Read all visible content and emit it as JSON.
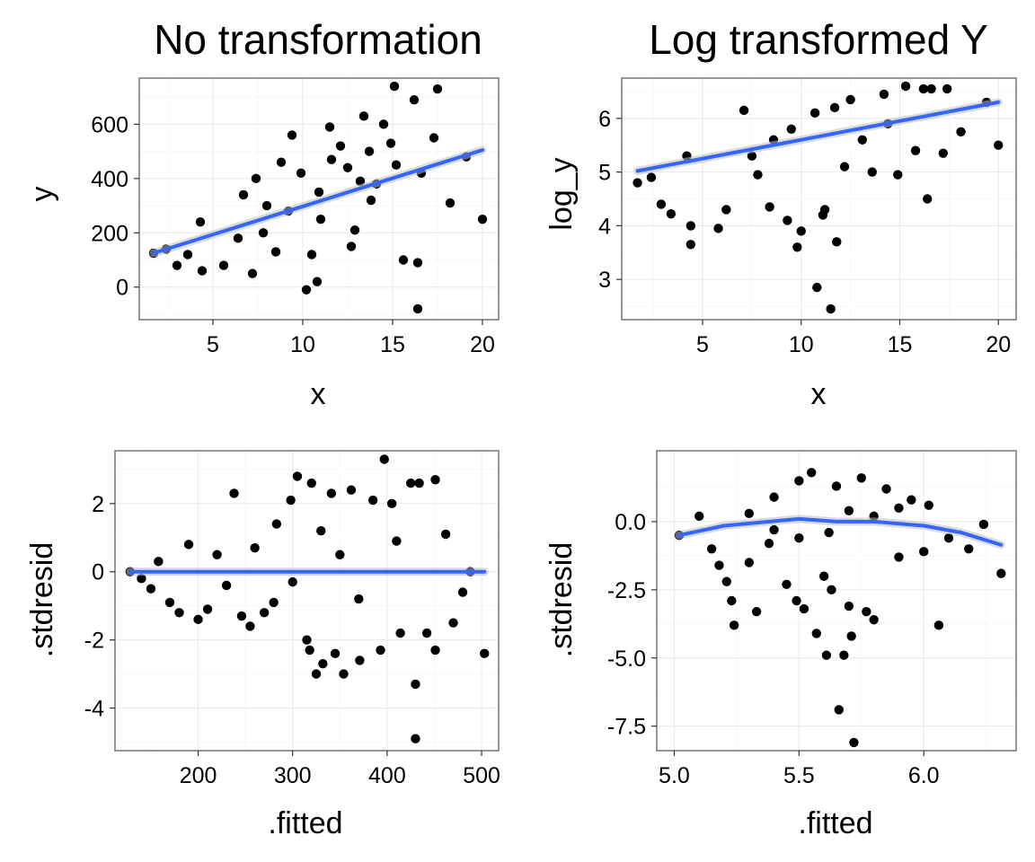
{
  "colors": {
    "points": "#000000",
    "smooth": "#3366ff",
    "ribbon": "#bdbdbd",
    "panel_border": "#7f7f7f",
    "grid": "#ebebeb"
  },
  "chart_data": [
    {
      "type": "scatter",
      "title": "No transformation",
      "xlabel": "x",
      "ylabel": "y",
      "xlim": [
        0.9,
        20.9
      ],
      "ylim": [
        -120,
        770
      ],
      "xticks": [
        5,
        10,
        15,
        20
      ],
      "xtick_labels": [
        "5",
        "10",
        "15",
        "20"
      ],
      "yticks": [
        0,
        200,
        400,
        600
      ],
      "ytick_labels": [
        "0",
        "200",
        "400",
        "600"
      ],
      "grid": true,
      "series": [],
      "points": [
        [
          1.7,
          125
        ],
        [
          2.4,
          140
        ],
        [
          3,
          80
        ],
        [
          3.6,
          120
        ],
        [
          4.4,
          60
        ],
        [
          4.3,
          240
        ],
        [
          5.6,
          80
        ],
        [
          6.7,
          340
        ],
        [
          7.2,
          50
        ],
        [
          7.8,
          200
        ],
        [
          8.5,
          130
        ],
        [
          8.8,
          460
        ],
        [
          9.4,
          560
        ],
        [
          10.2,
          -10
        ],
        [
          10.8,
          20
        ],
        [
          11.5,
          590
        ],
        [
          12.1,
          520
        ],
        [
          12.7,
          150
        ],
        [
          13.4,
          630
        ],
        [
          13.8,
          320
        ],
        [
          14.5,
          600
        ],
        [
          14.9,
          530
        ],
        [
          15.2,
          450
        ],
        [
          15.6,
          100
        ],
        [
          16.2,
          690
        ],
        [
          16.4,
          90
        ],
        [
          16.4,
          -80
        ],
        [
          16.6,
          420
        ],
        [
          17.3,
          550
        ],
        [
          17.5,
          730
        ],
        [
          18.2,
          310
        ],
        [
          19.1,
          480
        ],
        [
          20,
          250
        ],
        [
          12.5,
          440
        ],
        [
          10.9,
          350
        ],
        [
          9.2,
          280
        ],
        [
          8,
          300
        ],
        [
          11.6,
          470
        ],
        [
          13.2,
          390
        ],
        [
          14.1,
          380
        ],
        [
          6.4,
          180
        ],
        [
          15.1,
          740
        ],
        [
          12.9,
          210
        ],
        [
          10.5,
          120
        ],
        [
          7.4,
          400
        ],
        [
          9.9,
          420
        ],
        [
          11,
          250
        ],
        [
          13.7,
          500
        ]
      ],
      "smooth": {
        "x": [
          1.7,
          20
        ],
        "y": [
          125,
          505
        ]
      }
    },
    {
      "type": "scatter",
      "title": "Log transformed Y",
      "xlabel": "x",
      "ylabel": "log_y",
      "xlim": [
        0.9,
        20.9
      ],
      "ylim": [
        2.25,
        6.75
      ],
      "xticks": [
        5,
        10,
        15,
        20
      ],
      "xtick_labels": [
        "5",
        "10",
        "15",
        "20"
      ],
      "yticks": [
        3,
        4,
        5,
        6
      ],
      "ytick_labels": [
        "3",
        "4",
        "5",
        "6"
      ],
      "grid": true,
      "series": [],
      "points": [
        [
          1.7,
          4.8
        ],
        [
          2.4,
          4.9
        ],
        [
          2.9,
          4.4
        ],
        [
          3.4,
          4.22
        ],
        [
          4.4,
          3.65
        ],
        [
          4.4,
          4.0
        ],
        [
          4.2,
          5.3
        ],
        [
          5.8,
          3.95
        ],
        [
          6.2,
          4.3
        ],
        [
          7.1,
          6.15
        ],
        [
          7.8,
          4.95
        ],
        [
          8.4,
          4.35
        ],
        [
          9.3,
          4.1
        ],
        [
          9.8,
          3.6
        ],
        [
          10,
          3.9
        ],
        [
          10.8,
          2.85
        ],
        [
          11.5,
          2.45
        ],
        [
          11.1,
          4.2
        ],
        [
          11.2,
          4.3
        ],
        [
          11.8,
          3.7
        ],
        [
          12.5,
          6.35
        ],
        [
          13.6,
          5.0
        ],
        [
          14.2,
          6.45
        ],
        [
          14.9,
          4.95
        ],
        [
          15.3,
          6.6
        ],
        [
          16.2,
          6.55
        ],
        [
          16.4,
          4.5
        ],
        [
          16.6,
          6.55
        ],
        [
          17.2,
          5.35
        ],
        [
          17.4,
          6.55
        ],
        [
          18.1,
          5.75
        ],
        [
          19.4,
          6.3
        ],
        [
          20,
          5.5
        ],
        [
          12.2,
          5.1
        ],
        [
          9.5,
          5.8
        ],
        [
          10.7,
          6.1
        ],
        [
          13.1,
          5.6
        ],
        [
          8.6,
          5.6
        ],
        [
          11.7,
          6.2
        ],
        [
          7.5,
          5.3
        ],
        [
          14.4,
          5.9
        ],
        [
          15.8,
          5.4
        ]
      ],
      "smooth": {
        "x": [
          1.7,
          20
        ],
        "y": [
          5.02,
          6.3
        ]
      }
    },
    {
      "type": "scatter",
      "title": "",
      "xlabel": ".fitted",
      "ylabel": ".stdresid",
      "xlim": [
        112,
        518
      ],
      "ylim": [
        -5.25,
        3.55
      ],
      "xticks": [
        200,
        300,
        400,
        500
      ],
      "xtick_labels": [
        "200",
        "300",
        "400",
        "500"
      ],
      "yticks": [
        -4,
        -2,
        0,
        2
      ],
      "ytick_labels": [
        "-4",
        "-2",
        "0",
        "2"
      ],
      "grid": true,
      "series": [],
      "points": [
        [
          128,
          0
        ],
        [
          140,
          -0.2
        ],
        [
          150,
          -0.5
        ],
        [
          158,
          0.3
        ],
        [
          170,
          -0.9
        ],
        [
          180,
          -1.2
        ],
        [
          190,
          0.8
        ],
        [
          200,
          -1.4
        ],
        [
          210,
          -1.1
        ],
        [
          220,
          0.5
        ],
        [
          238,
          2.3
        ],
        [
          246,
          -1.3
        ],
        [
          255,
          -1.6
        ],
        [
          270,
          -1.2
        ],
        [
          283,
          1.4
        ],
        [
          298,
          2.1
        ],
        [
          305,
          2.8
        ],
        [
          315,
          -2.0
        ],
        [
          318,
          -2.3
        ],
        [
          320,
          2.6
        ],
        [
          325,
          -3.0
        ],
        [
          332,
          -2.7
        ],
        [
          341,
          2.3
        ],
        [
          345,
          -2.4
        ],
        [
          354,
          -3.0
        ],
        [
          362,
          2.4
        ],
        [
          371,
          -2.6
        ],
        [
          385,
          2.1
        ],
        [
          393,
          -2.3
        ],
        [
          397,
          3.3
        ],
        [
          405,
          2.0
        ],
        [
          414,
          -1.8
        ],
        [
          425,
          2.6
        ],
        [
          430,
          -3.3
        ],
        [
          430,
          -4.9
        ],
        [
          434,
          2.6
        ],
        [
          442,
          -1.8
        ],
        [
          451,
          2.7
        ],
        [
          451,
          -2.3
        ],
        [
          462,
          1.1
        ],
        [
          470,
          -1.5
        ],
        [
          480,
          -0.6
        ],
        [
          488,
          0.0
        ],
        [
          503,
          -2.4
        ],
        [
          350,
          0.5
        ],
        [
          300,
          -0.3
        ],
        [
          260,
          0.7
        ],
        [
          330,
          1.2
        ],
        [
          370,
          -0.8
        ],
        [
          280,
          -0.9
        ],
        [
          410,
          0.9
        ],
        [
          230,
          -0.4
        ]
      ],
      "smooth": {
        "x": [
          128,
          503
        ],
        "y": [
          0,
          0
        ]
      }
    },
    {
      "type": "scatter",
      "title": "",
      "xlabel": ".fitted",
      "ylabel": ".stdresid",
      "xlim": [
        4.93,
        6.37
      ],
      "ylim": [
        -8.4,
        2.6
      ],
      "xticks": [
        5.0,
        5.5,
        6.0
      ],
      "xtick_labels": [
        "5.0",
        "5.5",
        "6.0"
      ],
      "yticks": [
        -7.5,
        -5.0,
        -2.5,
        0.0
      ],
      "ytick_labels": [
        "-7.5",
        "-5.0",
        "-2.5",
        "0.0"
      ],
      "grid": true,
      "series": [],
      "points": [
        [
          5.02,
          -0.5
        ],
        [
          5.1,
          0.2
        ],
        [
          5.15,
          -1.0
        ],
        [
          5.18,
          -1.6
        ],
        [
          5.21,
          -2.2
        ],
        [
          5.23,
          -2.9
        ],
        [
          5.24,
          -3.8
        ],
        [
          5.3,
          -1.5
        ],
        [
          5.33,
          -3.3
        ],
        [
          5.38,
          -0.8
        ],
        [
          5.4,
          0.9
        ],
        [
          5.45,
          -2.3
        ],
        [
          5.49,
          -2.9
        ],
        [
          5.5,
          1.5
        ],
        [
          5.52,
          -3.2
        ],
        [
          5.55,
          1.8
        ],
        [
          5.57,
          -4.1
        ],
        [
          5.6,
          -2.0
        ],
        [
          5.61,
          -4.9
        ],
        [
          5.63,
          -2.5
        ],
        [
          5.65,
          1.3
        ],
        [
          5.66,
          -6.9
        ],
        [
          5.68,
          -4.9
        ],
        [
          5.7,
          -3.1
        ],
        [
          5.71,
          -4.2
        ],
        [
          5.72,
          -8.1
        ],
        [
          5.75,
          1.6
        ],
        [
          5.77,
          -3.3
        ],
        [
          5.8,
          -3.6
        ],
        [
          5.85,
          1.2
        ],
        [
          5.9,
          -1.3
        ],
        [
          5.95,
          0.8
        ],
        [
          6.0,
          -1.1
        ],
        [
          6.02,
          0.6
        ],
        [
          6.06,
          -3.8
        ],
        [
          6.1,
          -0.6
        ],
        [
          6.18,
          -1.0
        ],
        [
          6.24,
          -0.1
        ],
        [
          6.31,
          -1.9
        ],
        [
          5.62,
          -0.4
        ],
        [
          5.7,
          0.4
        ],
        [
          5.5,
          -0.6
        ],
        [
          5.8,
          0.2
        ],
        [
          5.3,
          0.3
        ],
        [
          5.9,
          0.5
        ],
        [
          5.4,
          -0.3
        ]
      ],
      "smooth": {
        "x": [
          5.02,
          5.2,
          5.5,
          5.65,
          5.8,
          6.0,
          6.15,
          6.31
        ],
        "y": [
          -0.5,
          -0.15,
          0.1,
          0.0,
          0.0,
          -0.15,
          -0.4,
          -0.85
        ]
      }
    }
  ]
}
